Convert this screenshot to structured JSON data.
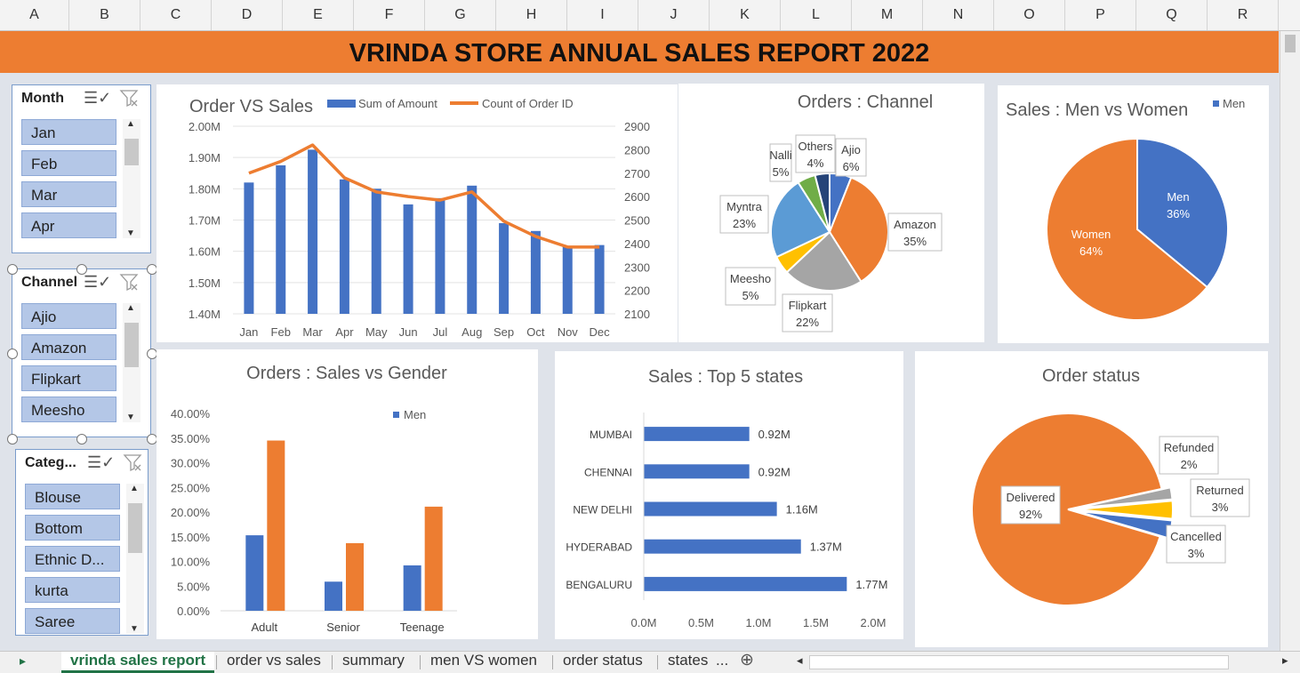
{
  "columns": [
    "A",
    "B",
    "C",
    "D",
    "E",
    "F",
    "G",
    "H",
    "I",
    "J",
    "K",
    "L",
    "M",
    "N",
    "O",
    "P",
    "Q",
    "R"
  ],
  "banner_title": "VRINDA STORE ANNUAL SALES REPORT 2022",
  "slicers": {
    "month": {
      "title": "Month",
      "items": [
        "Jan",
        "Feb",
        "Mar",
        "Apr"
      ]
    },
    "channel": {
      "title": "Channel",
      "items": [
        "Ajio",
        "Amazon",
        "Flipkart",
        "Meesho"
      ]
    },
    "category": {
      "title": "Categ...",
      "items": [
        "Blouse",
        "Bottom",
        "Ethnic D...",
        "kurta",
        "Saree"
      ]
    }
  },
  "icons": {
    "multi_select": "multi-select-icon",
    "clear_filter": "clear-filter-icon"
  },
  "colors": {
    "banner": "#ed7d31",
    "blue": "#4472c4",
    "orange": "#ed7d31",
    "gray": "#a5a5a5",
    "yellow": "#ffc000",
    "lightblue": "#5b9bd5",
    "green": "#70ad47",
    "navy": "#264478",
    "slicer_item": "#b4c7e7",
    "tab_active": "#217346"
  },
  "chart_data": [
    {
      "id": "order-vs-sales",
      "type": "bar",
      "title": "Order VS Sales",
      "categories": [
        "Jan",
        "Feb",
        "Mar",
        "Apr",
        "May",
        "Jun",
        "Jul",
        "Aug",
        "Sep",
        "Oct",
        "Nov",
        "Dec"
      ],
      "series": [
        {
          "name": "Sum of Amount",
          "type": "bar",
          "axis": "left",
          "values": [
            1.82,
            1.875,
            1.925,
            1.83,
            1.8,
            1.75,
            1.77,
            1.81,
            1.69,
            1.665,
            1.615,
            1.62
          ]
        },
        {
          "name": "Count of Order ID",
          "type": "line",
          "axis": "right",
          "values": [
            2700,
            2750,
            2820,
            2680,
            2620,
            2600,
            2585,
            2620,
            2495,
            2430,
            2385,
            2385
          ]
        }
      ],
      "ylim": [
        1.4,
        2.0
      ],
      "y_ticks": [
        "2.00M",
        "1.90M",
        "1.80M",
        "1.70M",
        "1.60M",
        "1.50M",
        "1.40M"
      ],
      "y2lim": [
        2100,
        2900
      ],
      "y2_ticks": [
        "2900",
        "2800",
        "2700",
        "2600",
        "2500",
        "2400",
        "2300",
        "2200",
        "2100"
      ],
      "legend": "top"
    },
    {
      "id": "orders-channel",
      "type": "pie",
      "title": "Orders : Channel",
      "slices": [
        {
          "label": "Ajio",
          "pct": "6%",
          "value": 6,
          "color": "#4472c4"
        },
        {
          "label": "Amazon",
          "pct": "35%",
          "value": 35,
          "color": "#ed7d31"
        },
        {
          "label": "Flipkart",
          "pct": "22%",
          "value": 22,
          "color": "#a5a5a5"
        },
        {
          "label": "Meesho",
          "pct": "5%",
          "value": 5,
          "color": "#ffc000"
        },
        {
          "label": "Myntra",
          "pct": "23%",
          "value": 23,
          "color": "#5b9bd5"
        },
        {
          "label": "Nalli",
          "pct": "5%",
          "value": 5,
          "color": "#70ad47"
        },
        {
          "label": "Others",
          "pct": "4%",
          "value": 4,
          "color": "#264478"
        }
      ]
    },
    {
      "id": "men-vs-women",
      "type": "pie",
      "title": "Sales : Men vs Women",
      "legend": [
        "Men"
      ],
      "slices": [
        {
          "label": "Men",
          "pct": "36%",
          "value": 36,
          "color": "#4472c4"
        },
        {
          "label": "Women",
          "pct": "64%",
          "value": 64,
          "color": "#ed7d31"
        }
      ]
    },
    {
      "id": "sales-vs-gender",
      "type": "bar",
      "title": "Orders : Sales vs Gender",
      "categories": [
        "Adult",
        "Senior",
        "Teenage"
      ],
      "series": [
        {
          "name": "Men",
          "values": [
            15.3,
            5.9,
            9.2
          ]
        },
        {
          "values": [
            34.5,
            13.7,
            21.1
          ]
        }
      ],
      "ylim": [
        0,
        40
      ],
      "y_ticks": [
        "40.00%",
        "35.00%",
        "30.00%",
        "25.00%",
        "20.00%",
        "15.00%",
        "10.00%",
        "5.00%",
        "0.00%"
      ],
      "legend": [
        "Men"
      ]
    },
    {
      "id": "top-states",
      "type": "bar",
      "orientation": "horizontal",
      "title": "Sales : Top 5 states",
      "categories": [
        "MUMBAI",
        "CHENNAI",
        "NEW DELHI",
        "HYDERABAD",
        "BENGALURU"
      ],
      "values": [
        0.92,
        0.92,
        1.16,
        1.37,
        1.77
      ],
      "labels": [
        "0.92M",
        "0.92M",
        "1.16M",
        "1.37M",
        "1.77M"
      ],
      "xlim": [
        0,
        2.0
      ],
      "x_ticks": [
        "0.0M",
        "0.5M",
        "1.0M",
        "1.5M",
        "2.0M"
      ]
    },
    {
      "id": "order-status",
      "type": "pie",
      "title": "Order status",
      "slices": [
        {
          "label": "Delivered",
          "pct": "92%",
          "value": 92,
          "color": "#ed7d31"
        },
        {
          "label": "Refunded",
          "pct": "2%",
          "value": 2,
          "color": "#a5a5a5"
        },
        {
          "label": "Returned",
          "pct": "3%",
          "value": 3,
          "color": "#ffc000"
        },
        {
          "label": "Cancelled",
          "pct": "3%",
          "value": 3,
          "color": "#4472c4"
        }
      ]
    }
  ],
  "sheet_tabs": {
    "active": "vrinda sales report",
    "others": [
      "order vs sales",
      "summary",
      "men VS women",
      "order status",
      "states"
    ],
    "more": "..."
  }
}
